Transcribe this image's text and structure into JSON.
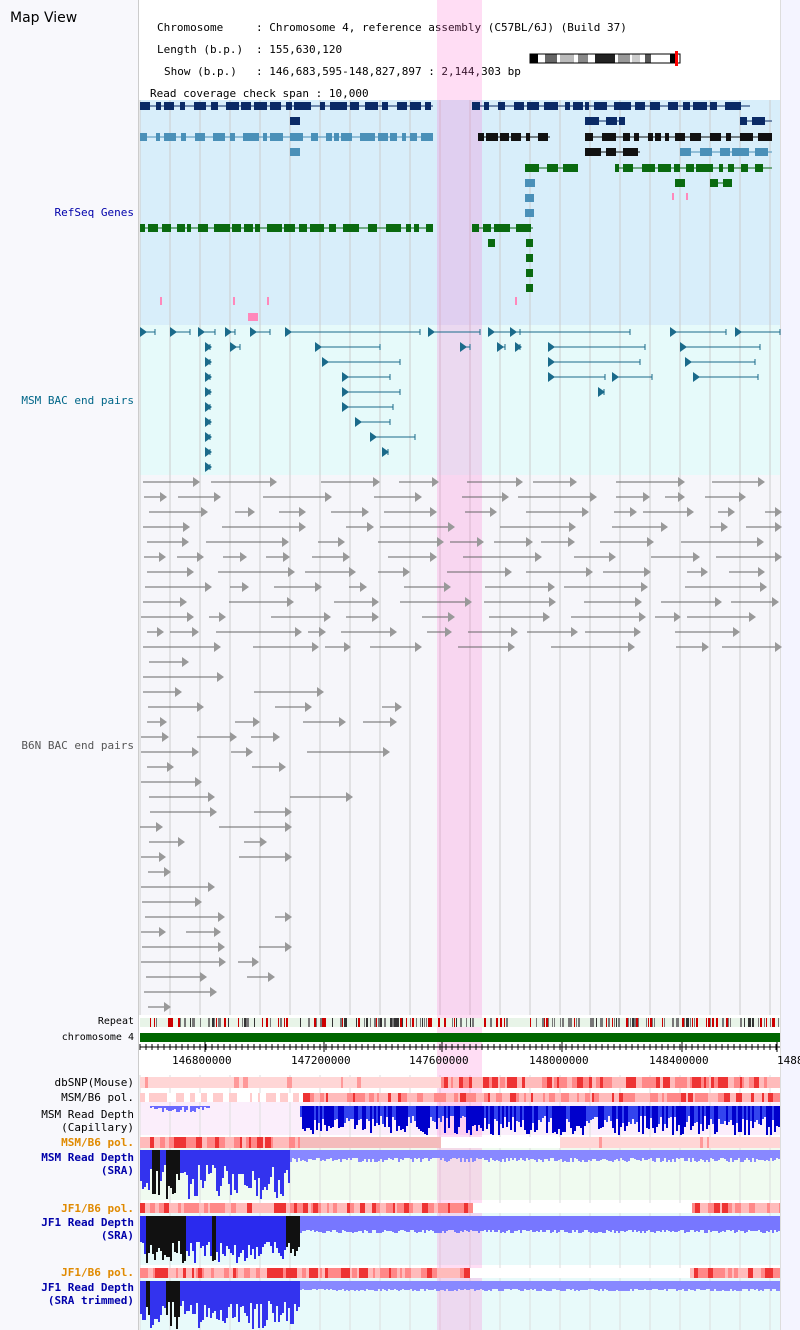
{
  "window": {
    "title": "Map View"
  },
  "header": {
    "chromosome_key": "Chromosome",
    "chromosome_val": "Chromosome 4, reference assembly (C57BL/6J) (Build 37)",
    "length_key": "Length (b.p.)",
    "length_val": "155,630,120",
    "show_key": "Show (b.p.)",
    "show_val": "146,683,595-148,827,897 : 2,144,303 bp",
    "coverage_key": "Read coverage check span",
    "coverage_val": "10,000"
  },
  "tracks": {
    "refseq": {
      "label": "RefSeq Genes",
      "color": "#0000aa"
    },
    "msm_bac": {
      "label": "MSM BAC end pairs",
      "color": "#006688"
    },
    "b6n_bac": {
      "label": "B6N BAC end pairs",
      "color": "#555555"
    },
    "repeat": {
      "label": "Repeat",
      "color": "#000000"
    },
    "chromosome": {
      "label": "chromosome 4",
      "color": "#000000"
    },
    "dbsnp": {
      "label": "dbSNP(Mouse)",
      "color": "#000000"
    },
    "msm_b6_pol1": {
      "label": "MSM/B6 pol.",
      "color": "#000000"
    },
    "msm_read_cap": {
      "label1": "MSM Read Depth",
      "label2": "(Capillary)",
      "color": "#000000"
    },
    "msm_b6_pol2": {
      "label": "MSM/B6 pol.",
      "color": "#e08a00"
    },
    "msm_read_sra": {
      "label1": "MSM Read Depth",
      "label2": "(SRA)",
      "color": "#0000aa"
    },
    "jf1_b6_pol1": {
      "label": "JF1/B6 pol.",
      "color": "#e08a00"
    },
    "jf1_read_sra": {
      "label1": "JF1 Read Depth",
      "label2": "(SRA)",
      "color": "#0000aa"
    },
    "jf1_b6_pol2": {
      "label": "JF1/B6 pol.",
      "color": "#e08a00"
    },
    "jf1_read_trim": {
      "label1": "JF1 Read Depth",
      "label2": "(SRA trimmed)",
      "color": "#0000aa"
    }
  },
  "axis": {
    "ticks": [
      "146800000",
      "147200000",
      "147600000",
      "148000000",
      "148400000",
      "1488"
    ]
  }
}
